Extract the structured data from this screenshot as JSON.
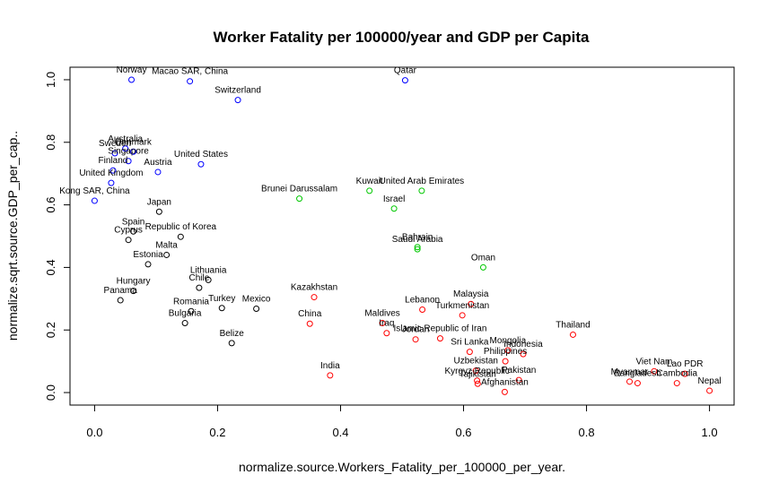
{
  "chart_data": {
    "type": "scatter",
    "title": "Worker Fatality per 100000/year and GDP per Capita",
    "xlabel": "normalize.source.Workers_Fatality_per_100000_per_year.",
    "ylabel": "normalize.sqrt.source.GDP_per_cap..",
    "xlim": [
      -0.04,
      1.04
    ],
    "ylim": [
      -0.04,
      1.04
    ],
    "xticks": [
      "0.0",
      "0.2",
      "0.4",
      "0.6",
      "0.8",
      "1.0"
    ],
    "yticks": [
      "0.0",
      "0.2",
      "0.4",
      "0.6",
      "0.8",
      "1.0"
    ],
    "colors": {
      "blue": "#0000ff",
      "black": "#000000",
      "green": "#00c800",
      "red": "#ff0000"
    },
    "points": [
      {
        "label": "Norway",
        "x": 0.06,
        "y": 1.0,
        "color": "blue"
      },
      {
        "label": "Macao SAR, China",
        "x": 0.155,
        "y": 0.995,
        "color": "blue"
      },
      {
        "label": "Qatar",
        "x": 0.505,
        "y": 0.998,
        "color": "blue"
      },
      {
        "label": "Switzerland",
        "x": 0.233,
        "y": 0.935,
        "color": "blue"
      },
      {
        "label": "Australia",
        "x": 0.05,
        "y": 0.78,
        "color": "blue"
      },
      {
        "label": "Denmark",
        "x": 0.063,
        "y": 0.77,
        "color": "blue"
      },
      {
        "label": "Sweden",
        "x": 0.033,
        "y": 0.765,
        "color": "blue"
      },
      {
        "label": "Singapore",
        "x": 0.055,
        "y": 0.74,
        "color": "blue"
      },
      {
        "label": "United States",
        "x": 0.173,
        "y": 0.73,
        "color": "blue"
      },
      {
        "label": "Finland",
        "x": 0.03,
        "y": 0.71,
        "color": "blue"
      },
      {
        "label": "Austria",
        "x": 0.103,
        "y": 0.705,
        "color": "blue"
      },
      {
        "label": "United Kingdom",
        "x": 0.027,
        "y": 0.67,
        "color": "blue"
      },
      {
        "label": "Kong SAR, China",
        "x": 0.0,
        "y": 0.613,
        "color": "blue"
      },
      {
        "label": "Japan",
        "x": 0.105,
        "y": 0.578,
        "color": "black"
      },
      {
        "label": "Spain",
        "x": 0.063,
        "y": 0.515,
        "color": "black"
      },
      {
        "label": "Republic of Korea",
        "x": 0.14,
        "y": 0.498,
        "color": "black"
      },
      {
        "label": "Cyprus",
        "x": 0.055,
        "y": 0.488,
        "color": "black"
      },
      {
        "label": "Malta",
        "x": 0.117,
        "y": 0.44,
        "color": "black"
      },
      {
        "label": "Estonia",
        "x": 0.087,
        "y": 0.41,
        "color": "black"
      },
      {
        "label": "Lithuania",
        "x": 0.185,
        "y": 0.36,
        "color": "black"
      },
      {
        "label": "Chile",
        "x": 0.17,
        "y": 0.335,
        "color": "black"
      },
      {
        "label": "Hungary",
        "x": 0.063,
        "y": 0.325,
        "color": "black"
      },
      {
        "label": "Panama",
        "x": 0.042,
        "y": 0.295,
        "color": "black"
      },
      {
        "label": "Romania",
        "x": 0.157,
        "y": 0.26,
        "color": "black"
      },
      {
        "label": "Turkey",
        "x": 0.207,
        "y": 0.27,
        "color": "black"
      },
      {
        "label": "Mexico",
        "x": 0.263,
        "y": 0.268,
        "color": "black"
      },
      {
        "label": "Bulgaria",
        "x": 0.147,
        "y": 0.222,
        "color": "black"
      },
      {
        "label": "Belize",
        "x": 0.223,
        "y": 0.158,
        "color": "black"
      },
      {
        "label": "Brunei Darussalam",
        "x": 0.333,
        "y": 0.62,
        "color": "green"
      },
      {
        "label": "Kuwait",
        "x": 0.447,
        "y": 0.645,
        "color": "green"
      },
      {
        "label": "United Arab Emirates",
        "x": 0.532,
        "y": 0.645,
        "color": "green"
      },
      {
        "label": "Israel",
        "x": 0.487,
        "y": 0.588,
        "color": "green"
      },
      {
        "label": "Bahrain",
        "x": 0.525,
        "y": 0.465,
        "color": "green"
      },
      {
        "label": "Saudi Arabia",
        "x": 0.525,
        "y": 0.458,
        "color": "green"
      },
      {
        "label": "Oman",
        "x": 0.632,
        "y": 0.4,
        "color": "green"
      },
      {
        "label": "Kazakhstan",
        "x": 0.357,
        "y": 0.305,
        "color": "red"
      },
      {
        "label": "China",
        "x": 0.35,
        "y": 0.22,
        "color": "red"
      },
      {
        "label": "India",
        "x": 0.383,
        "y": 0.055,
        "color": "red"
      },
      {
        "label": "Maldives",
        "x": 0.468,
        "y": 0.222,
        "color": "red"
      },
      {
        "label": "Iraq",
        "x": 0.475,
        "y": 0.19,
        "color": "red"
      },
      {
        "label": "Islamic Republic of Iran",
        "x": 0.562,
        "y": 0.173,
        "color": "red"
      },
      {
        "label": "Jordan",
        "x": 0.522,
        "y": 0.17,
        "color": "red"
      },
      {
        "label": "Lebanon",
        "x": 0.533,
        "y": 0.265,
        "color": "red"
      },
      {
        "label": "Malaysia",
        "x": 0.612,
        "y": 0.283,
        "color": "red"
      },
      {
        "label": "Turkmenistan",
        "x": 0.598,
        "y": 0.247,
        "color": "red"
      },
      {
        "label": "Sri Lanka",
        "x": 0.61,
        "y": 0.13,
        "color": "red"
      },
      {
        "label": "Mongolia",
        "x": 0.672,
        "y": 0.135,
        "color": "red"
      },
      {
        "label": "Indonesia",
        "x": 0.697,
        "y": 0.123,
        "color": "red"
      },
      {
        "label": "Philippines",
        "x": 0.668,
        "y": 0.1,
        "color": "red"
      },
      {
        "label": "Uzbekistan",
        "x": 0.62,
        "y": 0.07,
        "color": "red"
      },
      {
        "label": "Pakistan",
        "x": 0.69,
        "y": 0.04,
        "color": "red"
      },
      {
        "label": "Kyrgyz Republic",
        "x": 0.622,
        "y": 0.038,
        "color": "red"
      },
      {
        "label": "Tajikistan",
        "x": 0.623,
        "y": 0.028,
        "color": "red"
      },
      {
        "label": "Afghanistan",
        "x": 0.667,
        "y": 0.002,
        "color": "red"
      },
      {
        "label": "Thailand",
        "x": 0.778,
        "y": 0.185,
        "color": "red"
      },
      {
        "label": "Viet Nam",
        "x": 0.91,
        "y": 0.068,
        "color": "red"
      },
      {
        "label": "Myanmar",
        "x": 0.87,
        "y": 0.035,
        "color": "red"
      },
      {
        "label": "Bangladesh",
        "x": 0.883,
        "y": 0.03,
        "color": "red"
      },
      {
        "label": "Cambodia",
        "x": 0.947,
        "y": 0.03,
        "color": "red"
      },
      {
        "label": "Lao PDR",
        "x": 0.96,
        "y": 0.06,
        "color": "red"
      },
      {
        "label": "Nepal",
        "x": 1.0,
        "y": 0.006,
        "color": "red"
      }
    ]
  }
}
